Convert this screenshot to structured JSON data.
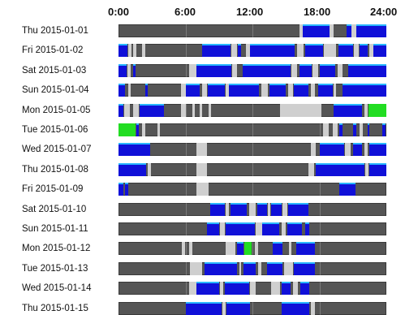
{
  "axis": {
    "ticks": [
      "0:00",
      "6:00",
      "12:00",
      "18:00",
      "24:00"
    ]
  },
  "colors": {
    "track": "#555555",
    "blue": "#1010d8",
    "blue_top": "#29b6ff",
    "gray": "#cfcfcf",
    "green": "#22dd22"
  },
  "rows": [
    {
      "label": "Thu 2015-01-01",
      "segments": [
        [
          16.2,
          16.5,
          "gray"
        ],
        [
          16.5,
          18.9,
          "blue"
        ],
        [
          18.9,
          19.3,
          "gray"
        ],
        [
          20.4,
          20.9,
          "blue"
        ],
        [
          20.9,
          21.3,
          "gray"
        ],
        [
          21.3,
          24,
          "blue"
        ]
      ]
    },
    {
      "label": "Fri 2015-01-02",
      "segments": [
        [
          0,
          0.8,
          "blue"
        ],
        [
          0.9,
          1.2,
          "gray"
        ],
        [
          1.3,
          1.6,
          "gray"
        ],
        [
          2.1,
          2.4,
          "gray"
        ],
        [
          7.5,
          10,
          "blue"
        ],
        [
          10.1,
          10.6,
          "gray"
        ],
        [
          10.7,
          11.0,
          "blue"
        ],
        [
          11.4,
          11.8,
          "gray"
        ],
        [
          11.8,
          15.8,
          "blue"
        ],
        [
          16.0,
          16.6,
          "gray"
        ],
        [
          16.7,
          18.3,
          "blue"
        ],
        [
          18.4,
          19.5,
          "gray"
        ],
        [
          19.7,
          21.0,
          "blue"
        ],
        [
          21.1,
          21.5,
          "gray"
        ],
        [
          21.6,
          22.3,
          "blue"
        ],
        [
          22.5,
          22.8,
          "gray"
        ],
        [
          22.8,
          24,
          "blue"
        ]
      ]
    },
    {
      "label": "Sat 2015-01-03",
      "segments": [
        [
          0,
          0.7,
          "blue"
        ],
        [
          0.8,
          1.1,
          "gray"
        ],
        [
          1.3,
          1.5,
          "blue"
        ],
        [
          6.3,
          7.0,
          "gray"
        ],
        [
          7.0,
          10.1,
          "blue"
        ],
        [
          10.2,
          10.6,
          "gray"
        ],
        [
          11.1,
          15.4,
          "blue"
        ],
        [
          15.5,
          16.0,
          "gray"
        ],
        [
          16.2,
          17.3,
          "blue"
        ],
        [
          17.4,
          17.9,
          "gray"
        ],
        [
          18.0,
          19.4,
          "blue"
        ],
        [
          19.6,
          20.1,
          "gray"
        ],
        [
          20.6,
          24,
          "blue"
        ]
      ]
    },
    {
      "label": "Sun 2015-01-04",
      "segments": [
        [
          0,
          0.6,
          "blue"
        ],
        [
          0.9,
          1.1,
          "gray"
        ],
        [
          2.4,
          2.6,
          "blue"
        ],
        [
          5.6,
          6.0,
          "gray"
        ],
        [
          6.0,
          7.3,
          "blue"
        ],
        [
          7.5,
          7.9,
          "gray"
        ],
        [
          8.0,
          9.5,
          "blue"
        ],
        [
          9.6,
          9.9,
          "gray"
        ],
        [
          9.9,
          12.6,
          "blue"
        ],
        [
          12.8,
          13.4,
          "gray"
        ],
        [
          13.5,
          15.0,
          "blue"
        ],
        [
          15.2,
          15.6,
          "gray"
        ],
        [
          15.7,
          17.0,
          "blue"
        ],
        [
          17.2,
          17.6,
          "gray"
        ],
        [
          17.9,
          19.2,
          "blue"
        ],
        [
          19.3,
          19.5,
          "gray"
        ],
        [
          20.1,
          24,
          "blue"
        ]
      ]
    },
    {
      "label": "Mon 2015-01-05",
      "segments": [
        [
          0,
          0.4,
          "blue"
        ],
        [
          0.5,
          1.0,
          "gray"
        ],
        [
          1.3,
          1.8,
          "gray"
        ],
        [
          1.9,
          4.1,
          "blue"
        ],
        [
          5.6,
          6.0,
          "gray"
        ],
        [
          6.6,
          6.8,
          "gray"
        ],
        [
          7.3,
          7.5,
          "gray"
        ],
        [
          8.1,
          8.3,
          "gray"
        ],
        [
          14.5,
          18.2,
          "gray"
        ],
        [
          19.3,
          21.8,
          "blue"
        ],
        [
          22.0,
          22.3,
          "gray"
        ],
        [
          22.4,
          24,
          "green"
        ]
      ]
    },
    {
      "label": "Tue 2015-01-06",
      "segments": [
        [
          0,
          1.5,
          "green"
        ],
        [
          1.6,
          1.8,
          "blue"
        ],
        [
          2.1,
          2.4,
          "gray"
        ],
        [
          3.5,
          3.7,
          "gray"
        ],
        [
          18.3,
          18.8,
          "gray"
        ],
        [
          19.2,
          19.6,
          "gray"
        ],
        [
          19.8,
          20.1,
          "blue"
        ],
        [
          21.0,
          21.3,
          "blue"
        ],
        [
          21.6,
          21.9,
          "gray"
        ],
        [
          22.3,
          22.5,
          "blue"
        ],
        [
          23.6,
          23.9,
          "blue"
        ]
      ]
    },
    {
      "label": "Wed 2015-01-07",
      "segments": [
        [
          0,
          2.8,
          "blue"
        ],
        [
          7.0,
          7.9,
          "gray"
        ],
        [
          17.2,
          17.7,
          "gray"
        ],
        [
          18.0,
          20.2,
          "blue"
        ],
        [
          20.3,
          20.8,
          "gray"
        ],
        [
          21.0,
          21.8,
          "blue"
        ],
        [
          22.0,
          22.3,
          "gray"
        ],
        [
          22.5,
          24,
          "blue"
        ]
      ]
    },
    {
      "label": "Thu 2015-01-08",
      "segments": [
        [
          0,
          2.5,
          "blue"
        ],
        [
          2.6,
          2.9,
          "gray"
        ],
        [
          7.0,
          7.9,
          "gray"
        ],
        [
          17.0,
          17.5,
          "gray"
        ],
        [
          17.7,
          22.0,
          "blue"
        ],
        [
          22.1,
          22.4,
          "gray"
        ],
        [
          22.5,
          24,
          "blue"
        ]
      ]
    },
    {
      "label": "Fri 2015-01-09",
      "segments": [
        [
          0,
          0.4,
          "blue"
        ],
        [
          0.6,
          0.9,
          "blue"
        ],
        [
          7.0,
          8.1,
          "gray"
        ],
        [
          19.8,
          21.2,
          "blue"
        ]
      ]
    },
    {
      "label": "Sat 2015-01-10",
      "segments": [
        [
          8.2,
          9.5,
          "blue"
        ],
        [
          9.6,
          9.9,
          "gray"
        ],
        [
          10.0,
          11.5,
          "blue"
        ],
        [
          11.7,
          12.3,
          "gray"
        ],
        [
          12.4,
          13.3,
          "blue"
        ],
        [
          13.4,
          13.6,
          "gray"
        ],
        [
          13.7,
          14.6,
          "blue"
        ],
        [
          14.7,
          15.1,
          "gray"
        ],
        [
          15.2,
          17.0,
          "blue"
        ]
      ]
    },
    {
      "label": "Sun 2015-01-11",
      "segments": [
        [
          7.9,
          9.0,
          "blue"
        ],
        [
          9.1,
          9.5,
          "gray"
        ],
        [
          9.6,
          12.2,
          "blue"
        ],
        [
          12.3,
          12.9,
          "gray"
        ],
        [
          12.9,
          14.4,
          "blue"
        ],
        [
          14.6,
          15.0,
          "gray"
        ],
        [
          15.1,
          16.4,
          "blue"
        ],
        [
          16.7,
          17.1,
          "blue"
        ]
      ]
    },
    {
      "label": "Mon 2015-01-12",
      "segments": [
        [
          5.7,
          6.0,
          "gray"
        ],
        [
          6.3,
          6.6,
          "gray"
        ],
        [
          9.6,
          10.5,
          "gray"
        ],
        [
          10.6,
          11.2,
          "blue"
        ],
        [
          11.3,
          11.9,
          "green"
        ],
        [
          12.2,
          12.5,
          "gray"
        ],
        [
          13.8,
          14.7,
          "blue"
        ],
        [
          15.3,
          15.5,
          "gray"
        ],
        [
          15.9,
          17.6,
          "blue"
        ]
      ]
    },
    {
      "label": "Tue 2015-01-13",
      "segments": [
        [
          6.4,
          7.5,
          "gray"
        ],
        [
          7.7,
          10.6,
          "blue"
        ],
        [
          10.8,
          11.0,
          "gray"
        ],
        [
          11.2,
          12.3,
          "blue"
        ],
        [
          12.5,
          12.8,
          "gray"
        ],
        [
          13.3,
          14.7,
          "blue"
        ],
        [
          14.8,
          15.6,
          "gray"
        ],
        [
          15.7,
          17.6,
          "blue"
        ]
      ]
    },
    {
      "label": "Wed 2015-01-14",
      "segments": [
        [
          6.3,
          7.0,
          "gray"
        ],
        [
          7.0,
          9.0,
          "blue"
        ],
        [
          9.1,
          9.4,
          "gray"
        ],
        [
          9.5,
          11.7,
          "blue"
        ],
        [
          11.8,
          12.3,
          "gray"
        ],
        [
          13.7,
          14.5,
          "gray"
        ],
        [
          14.6,
          15.4,
          "blue"
        ],
        [
          15.6,
          16.1,
          "gray"
        ],
        [
          16.3,
          17.1,
          "blue"
        ]
      ]
    },
    {
      "label": "Thu 2015-01-15",
      "segments": [
        [
          6.0,
          9.2,
          "blue"
        ],
        [
          9.3,
          9.6,
          "gray"
        ],
        [
          9.7,
          11.8,
          "blue"
        ],
        [
          14.6,
          17.1,
          "blue"
        ],
        [
          17.2,
          17.6,
          "gray"
        ]
      ]
    }
  ]
}
